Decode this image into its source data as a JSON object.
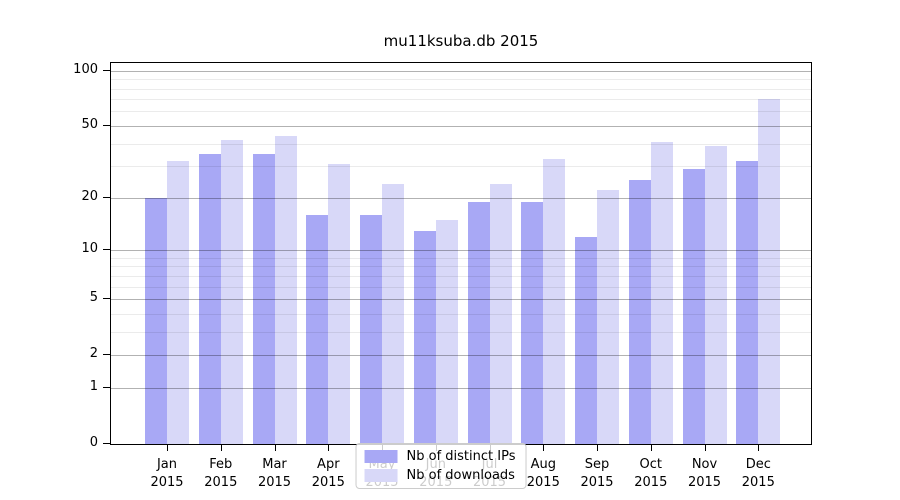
{
  "title": "mu11ksuba.db 2015",
  "chart_data": {
    "type": "bar",
    "title": "mu11ksuba.db 2015",
    "categories": [
      "Jan",
      "Feb",
      "Mar",
      "Apr",
      "May",
      "Jun",
      "Jul",
      "Aug",
      "Sep",
      "Oct",
      "Nov",
      "Dec"
    ],
    "category_year": "2015",
    "series": [
      {
        "name": "Nb of distinct IPs",
        "color": "#a8a8f5",
        "values": [
          20,
          35,
          35,
          16,
          16,
          13,
          19,
          19,
          12,
          25,
          29,
          32
        ]
      },
      {
        "name": "Nb of downloads",
        "color": "#d8d8f8",
        "values": [
          32,
          42,
          44,
          31,
          24,
          15,
          24,
          33,
          22,
          41,
          39,
          70
        ]
      }
    ],
    "yscale": "log1p",
    "ylim": [
      0,
      110
    ],
    "yticks": [
      0,
      1,
      2,
      5,
      10,
      20,
      50,
      100
    ],
    "yminor_gridlines": [
      3,
      4,
      6,
      7,
      8,
      9,
      30,
      40,
      60,
      70,
      80,
      90
    ],
    "grid": true,
    "legend_position": "lower center",
    "xlabel": "",
    "ylabel": ""
  }
}
